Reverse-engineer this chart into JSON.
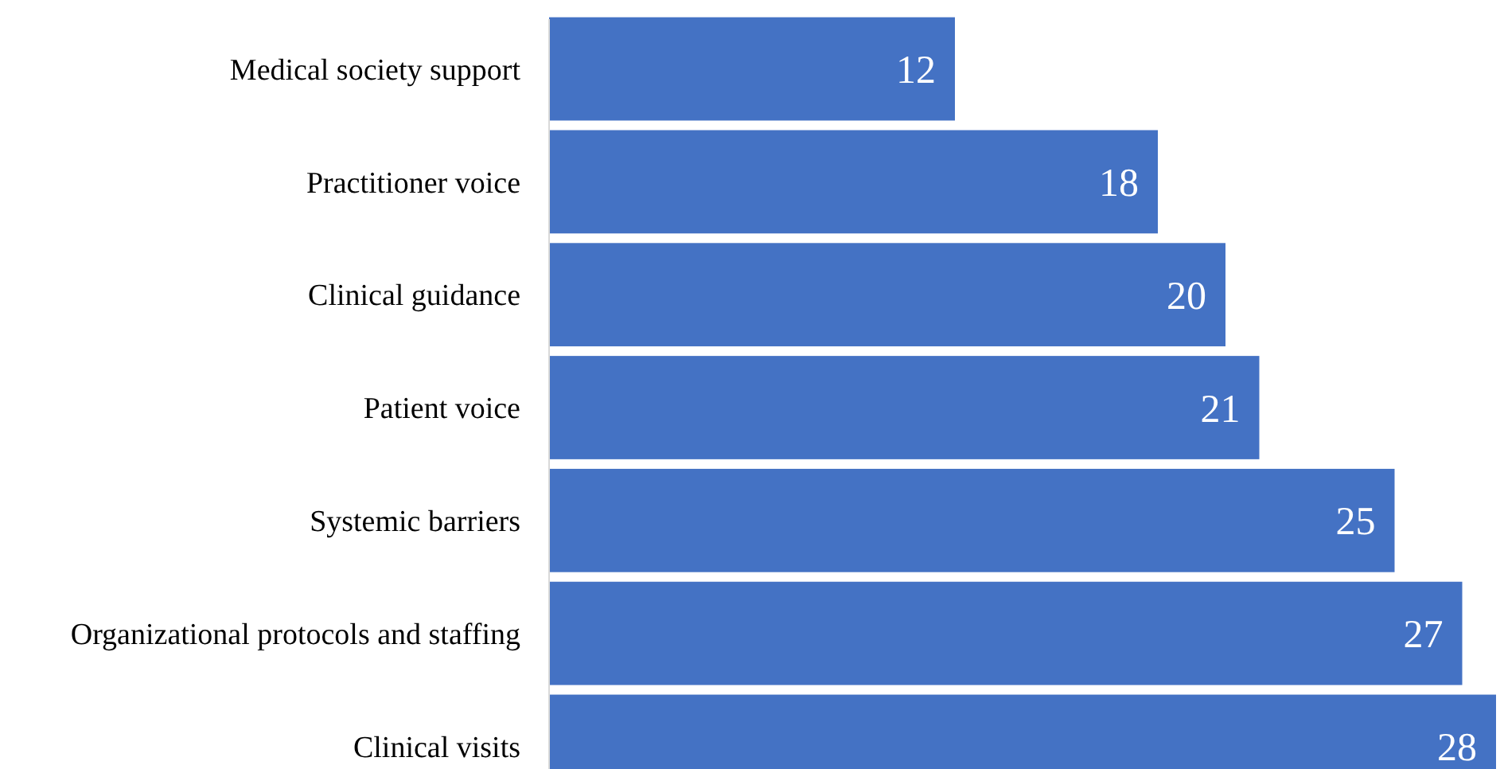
{
  "chart_data": {
    "type": "bar",
    "orientation": "horizontal",
    "categories": [
      "Medical society support",
      "Practitioner voice",
      "Clinical guidance",
      "Patient voice",
      "Systemic barriers",
      "Organizational protocols and staffing",
      "Clinical visits"
    ],
    "values": [
      12,
      18,
      20,
      21,
      25,
      27,
      28
    ],
    "color": "#4472c4",
    "data_labels": true,
    "tick_labels": "y"
  }
}
